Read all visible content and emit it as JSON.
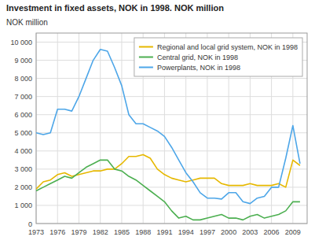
{
  "chart_data": {
    "type": "line",
    "title": "Investment in fixed assets, NOK in 1998. NOK million",
    "y_label": "NOK million",
    "x": [
      1973,
      1974,
      1975,
      1976,
      1977,
      1978,
      1979,
      1980,
      1981,
      1982,
      1983,
      1984,
      1985,
      1986,
      1987,
      1988,
      1989,
      1990,
      1991,
      1992,
      1993,
      1994,
      1995,
      1996,
      1997,
      1998,
      1999,
      2000,
      2001,
      2002,
      2003,
      2004,
      2005,
      2006,
      2007,
      2008,
      2009,
      2010
    ],
    "series": [
      {
        "name": "Regional and local grid system, NOK in 1998",
        "color": "#e6b800",
        "values": [
          1900,
          2300,
          2400,
          2700,
          2800,
          2600,
          2700,
          2800,
          2900,
          2900,
          3000,
          3000,
          3300,
          3700,
          3700,
          3800,
          3600,
          3000,
          2700,
          2500,
          2400,
          2300,
          2400,
          2500,
          2500,
          2500,
          2200,
          2100,
          2100,
          2100,
          2200,
          2100,
          2100,
          2100,
          2200,
          2000,
          3500,
          3200
        ]
      },
      {
        "name": "Central grid, NOK in 1998",
        "color": "#4caf50",
        "values": [
          1800,
          2000,
          2200,
          2400,
          2600,
          2500,
          2800,
          3100,
          3300,
          3500,
          3500,
          3000,
          2900,
          2600,
          2400,
          2100,
          1800,
          1500,
          1200,
          700,
          300,
          400,
          200,
          200,
          300,
          400,
          500,
          300,
          300,
          200,
          400,
          500,
          300,
          400,
          500,
          700,
          1200,
          1200
        ]
      },
      {
        "name": "Powerplants, NOK in 1998",
        "color": "#4da6e8",
        "values": [
          5000,
          4900,
          5000,
          6300,
          6300,
          6200,
          7000,
          8000,
          9000,
          9600,
          9500,
          8600,
          7600,
          6000,
          5500,
          5500,
          5300,
          5100,
          4800,
          4200,
          3500,
          2800,
          2300,
          1700,
          1400,
          1400,
          1350,
          1700,
          1700,
          1200,
          1100,
          1400,
          1500,
          2000,
          2000,
          3600,
          5400,
          3300
        ]
      }
    ],
    "xlim": [
      1973,
      2011
    ],
    "ylim": [
      0,
      10500
    ],
    "xticks": [
      1973,
      1976,
      1979,
      1982,
      1985,
      1988,
      1991,
      1994,
      1997,
      2000,
      2003,
      2006,
      2009
    ],
    "yticks": [
      0,
      {
        "value": 1000,
        "label": "1 000"
      },
      {
        "value": 2000,
        "label": "2 000"
      },
      {
        "value": 3000,
        "label": "3 000"
      },
      {
        "value": 4000,
        "label": "4 000"
      },
      {
        "value": 5000,
        "label": "5 000"
      },
      {
        "value": 6000,
        "label": "6 000"
      },
      {
        "value": 7000,
        "label": "7 000"
      },
      {
        "value": 8000,
        "label": "8 000"
      },
      {
        "value": 9000,
        "label": "9 000"
      },
      {
        "value": 10000,
        "label": "10 000"
      }
    ],
    "grid": true,
    "legend": "upper right"
  }
}
